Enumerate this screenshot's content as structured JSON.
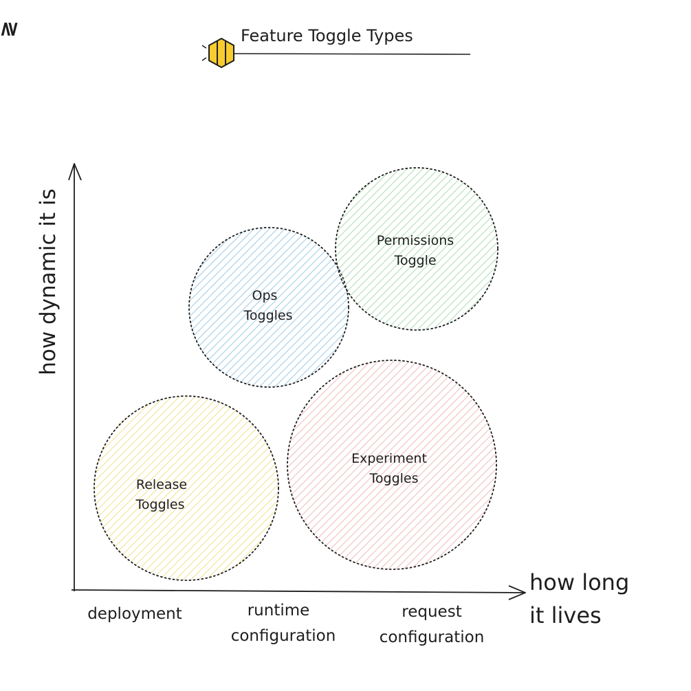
{
  "title": "Feature Toggle Types",
  "brand": {
    "mark": "≷",
    "color": "#1e1e1e"
  },
  "axes": {
    "x_title_line1": "how long",
    "x_title_line2": "it lives",
    "y_title": "how dynamic it is",
    "x_ticks": [
      {
        "line1": "deployment",
        "line2": ""
      },
      {
        "line1": "runtime",
        "line2": "configuration"
      },
      {
        "line1": "request",
        "line2": "configuration"
      }
    ]
  },
  "bubbles": [
    {
      "line1": "Release",
      "line2": "Toggles",
      "color": "#f0e08a"
    },
    {
      "line1": "Ops",
      "line2": "Toggles",
      "color": "#9cc9e6"
    },
    {
      "line1": "Permissions",
      "line2": "Toggle",
      "color": "#a8dcb0"
    },
    {
      "line1": "Experiment",
      "line2": "Toggles",
      "color": "#f2b8b8"
    }
  ],
  "colors": {
    "ink": "#1e1e1e",
    "logo_yellow": "#f7cc2f"
  }
}
